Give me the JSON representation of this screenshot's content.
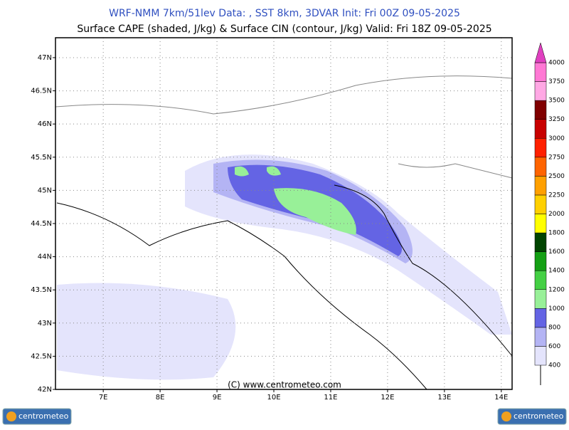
{
  "header": {
    "title": "WRF-NMM 7km/51lev  Data: , SST 8km, 3DVAR  Init: Fri 00Z 09-05-2025",
    "subtitle": "Surface CAPE (shaded, J/kg) & Surface CIN (contour, J/kg)  Valid: Fri 18Z 09-05-2025"
  },
  "map": {
    "xlim": [
      6.16,
      14.19
    ],
    "ylim": [
      42,
      47.3
    ],
    "xticks": [
      {
        "value": 7,
        "label": "7E"
      },
      {
        "value": 8,
        "label": "8E"
      },
      {
        "value": 9,
        "label": "9E"
      },
      {
        "value": 10,
        "label": "10E"
      },
      {
        "value": 11,
        "label": "11E"
      },
      {
        "value": 12,
        "label": "12E"
      },
      {
        "value": 13,
        "label": "13E"
      },
      {
        "value": 14,
        "label": "14E"
      }
    ],
    "yticks": [
      {
        "value": 42,
        "label": "42N"
      },
      {
        "value": 42.5,
        "label": "42.5N"
      },
      {
        "value": 43,
        "label": "43N"
      },
      {
        "value": 43.5,
        "label": "43.5N"
      },
      {
        "value": 44,
        "label": "44N"
      },
      {
        "value": 44.5,
        "label": "44.5N"
      },
      {
        "value": 45,
        "label": "45N"
      },
      {
        "value": 45.5,
        "label": "45.5N"
      },
      {
        "value": 46,
        "label": "46N"
      },
      {
        "value": 46.5,
        "label": "46.5N"
      },
      {
        "value": 47,
        "label": "47N"
      }
    ],
    "grid": true,
    "copyright": "(C)  www.centrometeo.com"
  },
  "colorbar": {
    "levels": [
      400,
      600,
      800,
      1000,
      1200,
      1400,
      1600,
      1800,
      2000,
      2250,
      2500,
      2750,
      3000,
      3250,
      3500,
      3750,
      4000
    ],
    "colors": [
      "#e4e4fc",
      "#b4b4f4",
      "#6464e4",
      "#98f098",
      "#44d044",
      "#14a014",
      "#004400",
      "#ffff00",
      "#ffd000",
      "#ffa000",
      "#ff6400",
      "#ff2000",
      "#c80000",
      "#800000",
      "#ffa8e4",
      "#ff78d4"
    ],
    "extend_color": "#e040c0"
  },
  "footer": {
    "logo": "centrometeo"
  }
}
